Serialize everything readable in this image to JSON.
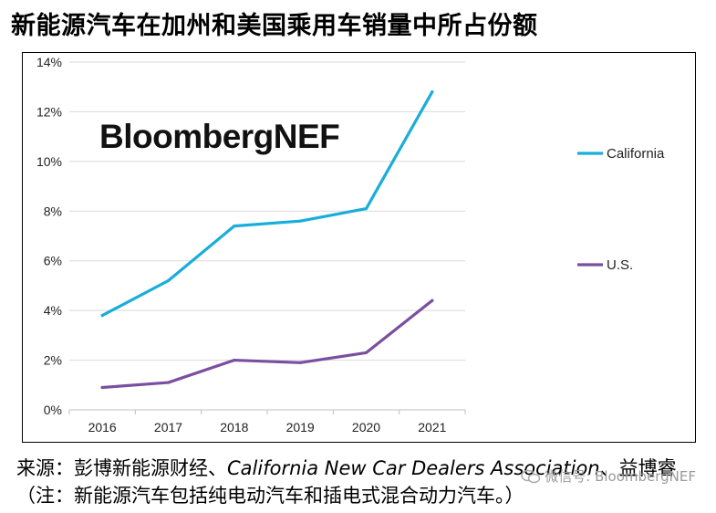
{
  "title": "新能源汽车在加州和美国乘用车销量中所占份额",
  "brand": "BloombergNEF",
  "source": {
    "prefix": "来源：彭博新能源财经、",
    "english": "California New Car Dealers Association",
    "suffix": "、益博睿"
  },
  "note": "（注：新能源汽车包括纯电动汽车和插电式混合动力汽车。）",
  "watermark": "微信号: BloombergNEF",
  "colors": {
    "california": "#1AADD9",
    "us": "#7B4FA0"
  },
  "chart_data": {
    "type": "line",
    "title": "",
    "xlabel": "",
    "ylabel": "",
    "x": [
      "2016",
      "2017",
      "2018",
      "2019",
      "2020",
      "2021"
    ],
    "ylim": [
      0,
      14
    ],
    "yticks": [
      "0%",
      "2%",
      "4%",
      "6%",
      "8%",
      "10%",
      "12%",
      "14%"
    ],
    "grid": true,
    "legend_position": "right",
    "series": [
      {
        "name": "California",
        "values": [
          3.8,
          5.2,
          7.4,
          7.6,
          8.1,
          12.8
        ]
      },
      {
        "name": "U.S.",
        "values": [
          0.9,
          1.1,
          2.0,
          1.9,
          2.3,
          4.4
        ]
      }
    ]
  }
}
